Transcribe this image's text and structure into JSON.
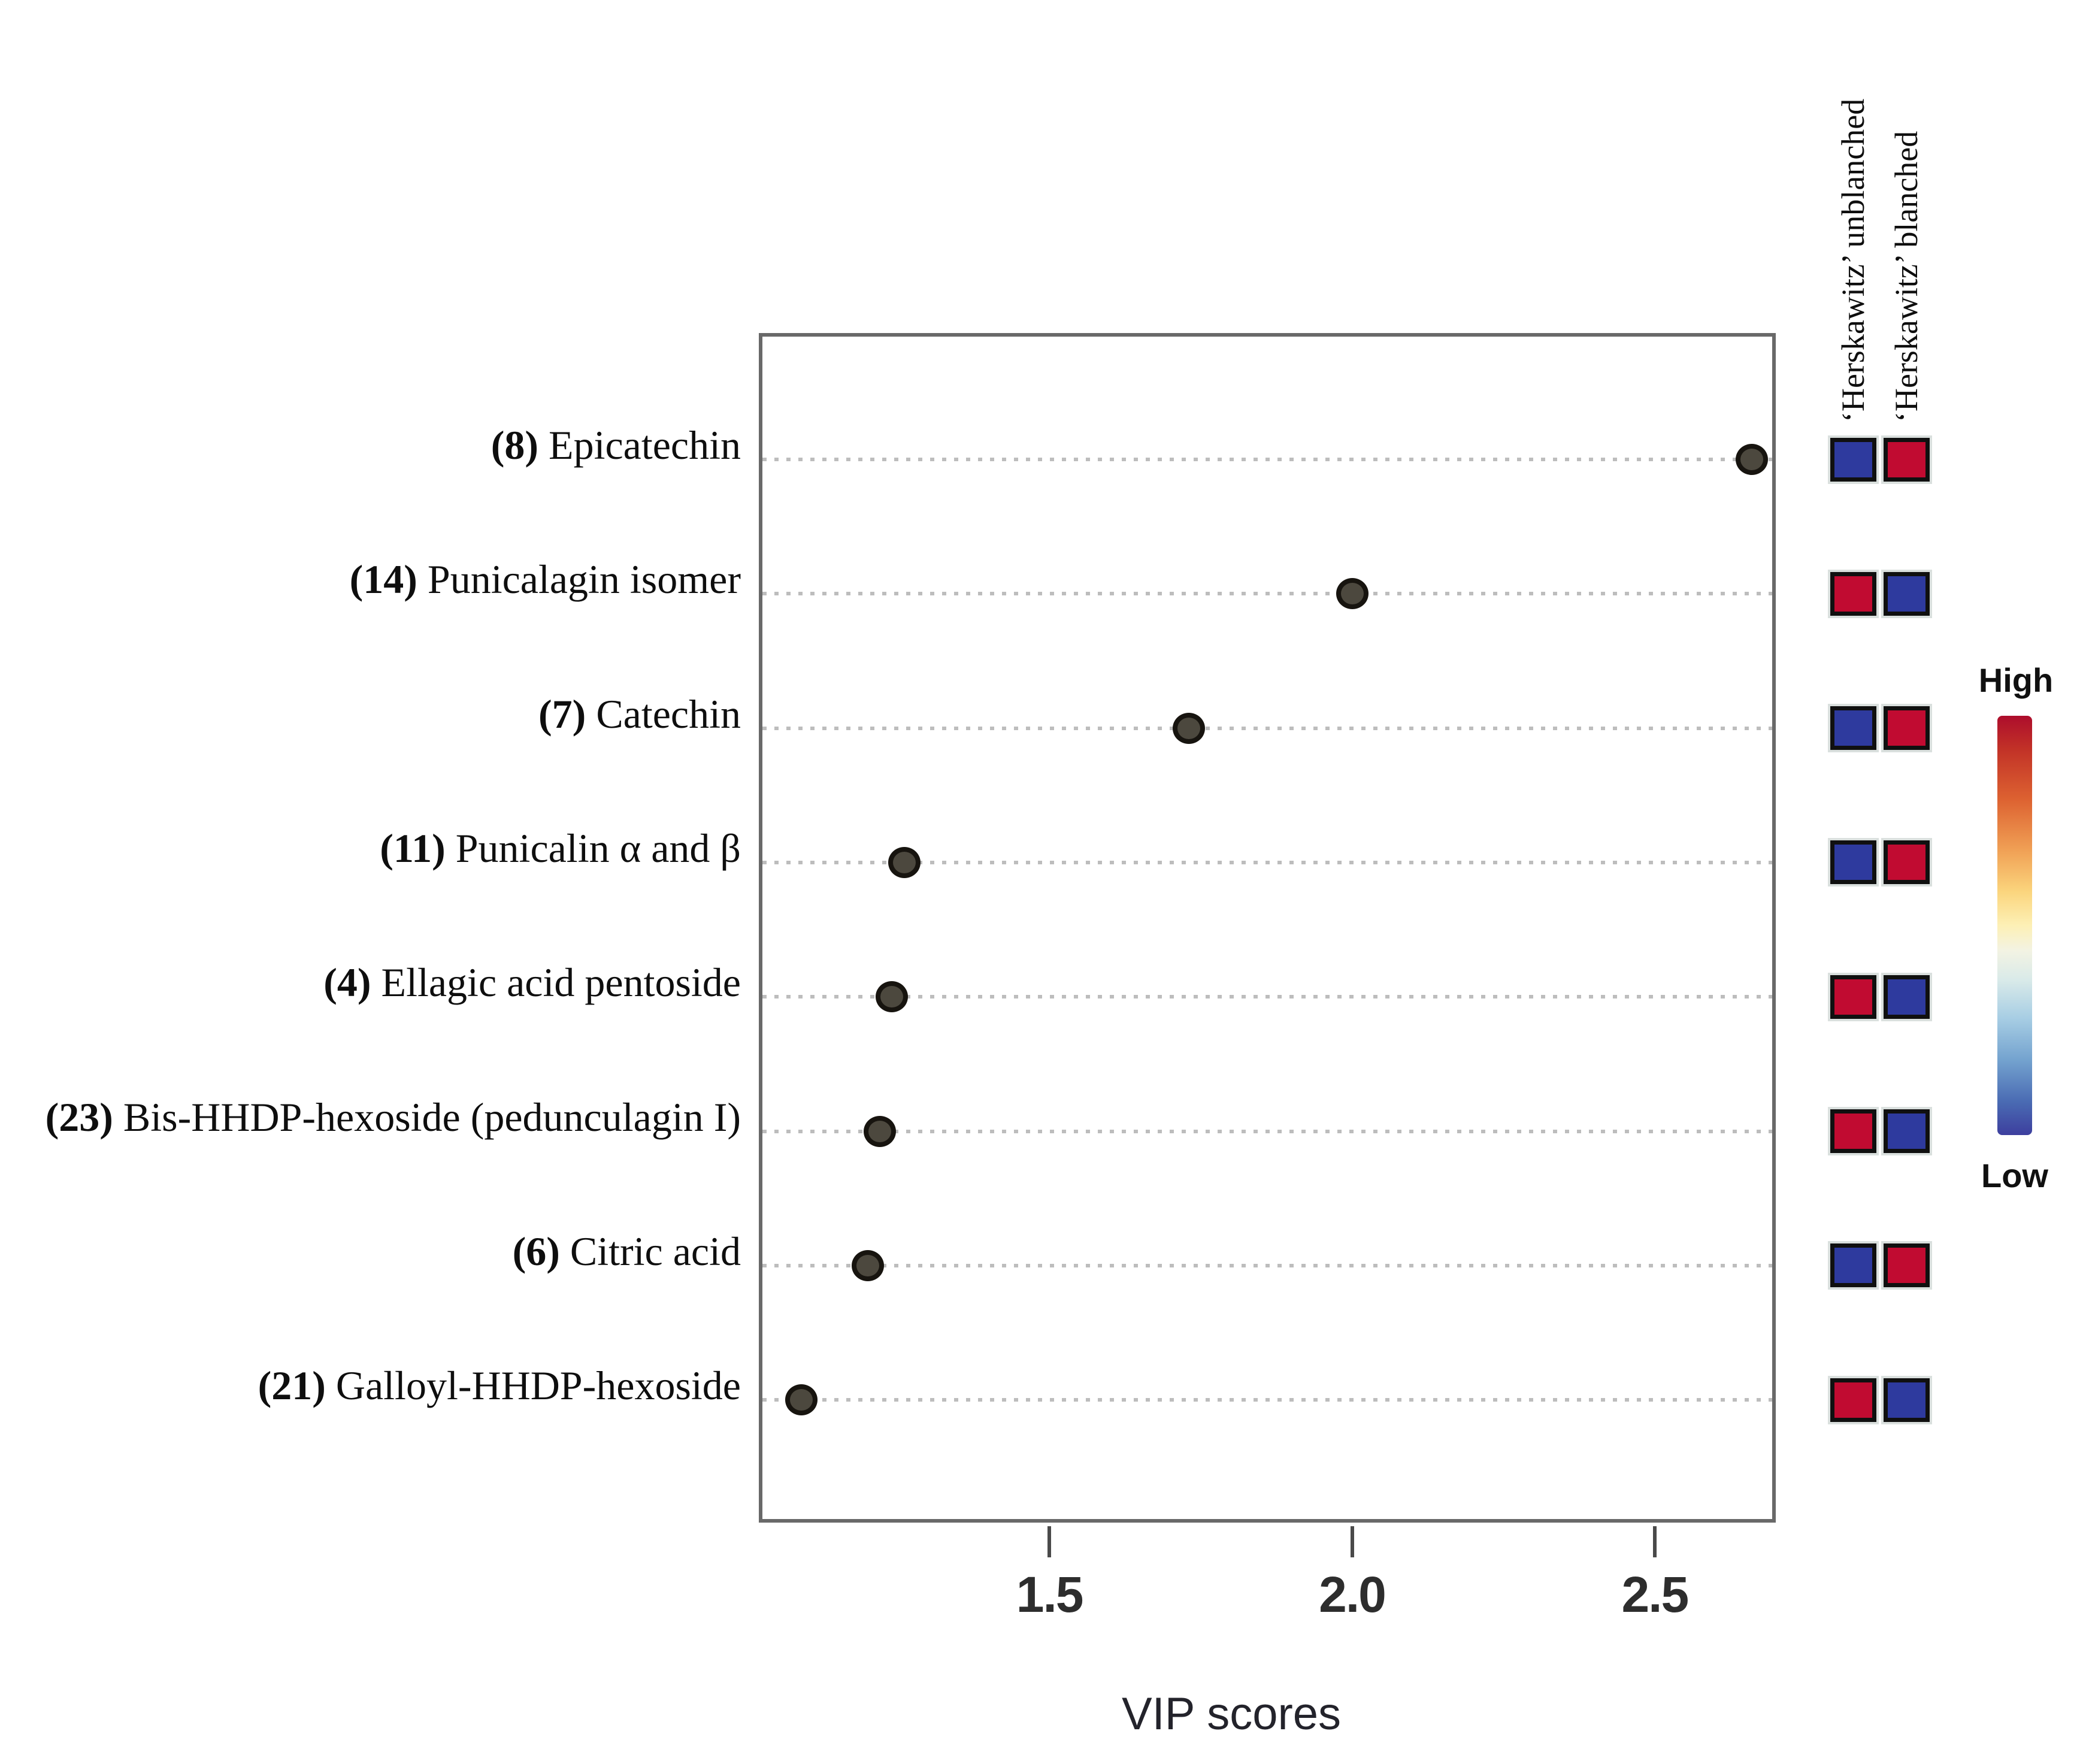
{
  "chart_data": {
    "type": "scatter",
    "title": "",
    "xlabel": "VIP scores",
    "x_ticks": [
      "1.5",
      "2.0",
      "2.5"
    ],
    "x_tick_values": [
      1.5,
      2.0,
      2.5
    ],
    "xlim": [
      1.02,
      2.7
    ],
    "grid": "dotted horizontal gridlines, one per compound row",
    "legend": {
      "high_label": "High",
      "low_label": "Low",
      "position": "right",
      "gradient": "red (High) to yellow to blue (Low)"
    },
    "columns": [
      {
        "key": "unblanched",
        "label": "‘Herskawitz’ unblanched"
      },
      {
        "key": "blanched",
        "label": "‘Herskawitz’ blanched"
      }
    ],
    "rows": [
      {
        "id": "(8)",
        "name": "Epicatechin",
        "vip": 2.66,
        "unblanched": "low",
        "blanched": "high"
      },
      {
        "id": "(14)",
        "name": "Punicalagin isomer",
        "vip": 2.0,
        "unblanched": "high",
        "blanched": "low"
      },
      {
        "id": "(7)",
        "name": "Catechin",
        "vip": 1.73,
        "unblanched": "low",
        "blanched": "high"
      },
      {
        "id": "(11)",
        "name": "Punicalin α and β",
        "vip": 1.26,
        "unblanched": "low",
        "blanched": "high"
      },
      {
        "id": "(4)",
        "name": "Ellagic acid pentoside",
        "vip": 1.24,
        "unblanched": "high",
        "blanched": "low"
      },
      {
        "id": "(23)",
        "name": "Bis-HHDP-hexoside (pedunculagin I)",
        "vip": 1.22,
        "unblanched": "high",
        "blanched": "low"
      },
      {
        "id": "(6)",
        "name": "Citric acid",
        "vip": 1.2,
        "unblanched": "low",
        "blanched": "high"
      },
      {
        "id": "(21)",
        "name": "Galloyl-HHDP-hexoside",
        "vip": 1.09,
        "unblanched": "high",
        "blanched": "low"
      }
    ],
    "colors": {
      "high": "#c10b31",
      "low": "#2e3a9e",
      "dot": "#4c483e",
      "grid": "#bdbdbd",
      "frame": "#696969"
    }
  }
}
